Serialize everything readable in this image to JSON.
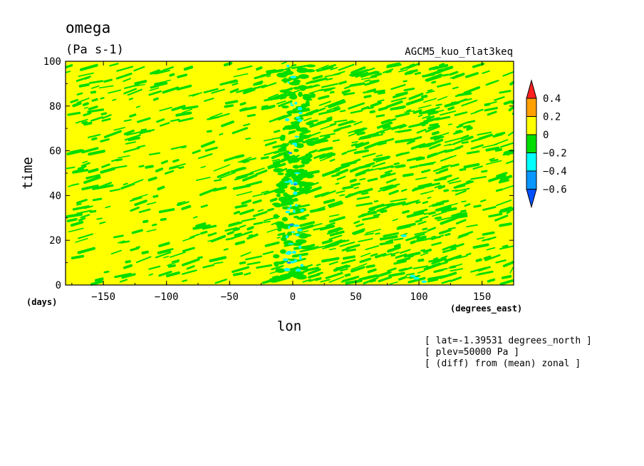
{
  "chart_data": {
    "type": "heatmap",
    "title": "omega",
    "units": "(Pa s-1)",
    "model_label": "AGCM5_kuo_flat3keq",
    "xlabel": "lon",
    "x_units": "(degrees_east)",
    "ylabel": "time",
    "y_units": "(days)",
    "xlim": [
      -180,
      175
    ],
    "ylim": [
      0,
      100
    ],
    "x_ticks": [
      -150,
      -100,
      -50,
      0,
      50,
      100,
      150
    ],
    "y_ticks": [
      0,
      20,
      40,
      60,
      80,
      100
    ],
    "colorbar": {
      "levels": [
        0.4,
        0.2,
        0,
        -0.2,
        -0.4,
        -0.6
      ],
      "colors": [
        "#ff2020",
        "#ff9f00",
        "#ffff00",
        "#00dd00",
        "#00ffff",
        "#0a96ff",
        "#0050ff"
      ]
    },
    "annotations": [
      "[ lat=-1.39531 degrees_north ]",
      "[ plev=50000 Pa ]",
      "[ (diff) from (mean) zonal ]"
    ],
    "field_summary": "Mostly near-zero (yellow) values with dense small negative (green) streaks tilted eastward over time; strongest negatives (cyan/blue) concentrated near lon 0 and around lon 100."
  }
}
